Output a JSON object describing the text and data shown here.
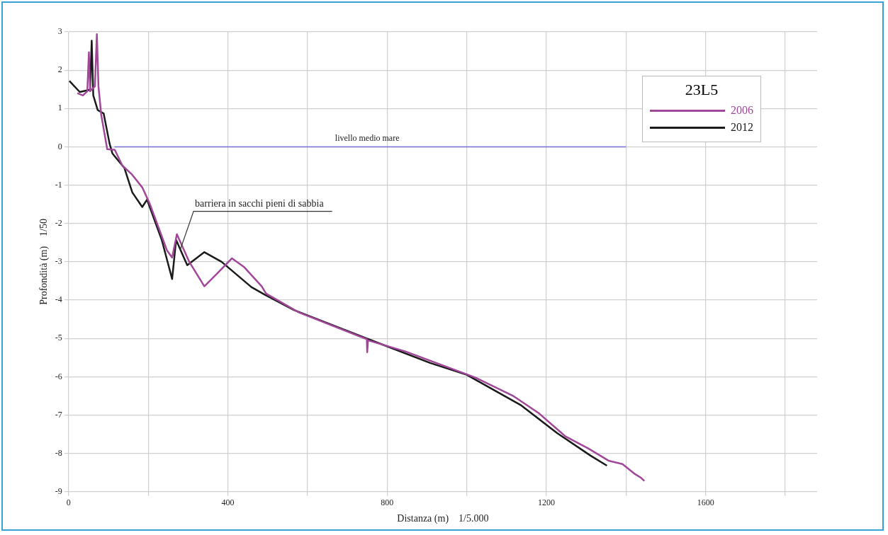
{
  "chart_data": {
    "type": "line",
    "xlabel": "Distanza (m)    1/5.000",
    "ylabel": "Profondità (m)    1/50",
    "legend_title": "23L5",
    "legend": "top right",
    "grid": true,
    "marker": "none",
    "line_style": "solid",
    "xlim": [
      0,
      1880
    ],
    "xticks": [
      0,
      {
        "value": 200,
        "label": null
      },
      400,
      {
        "value": 600,
        "label": null
      },
      800,
      {
        "value": 1000,
        "label": null
      },
      1200,
      {
        "value": 1400,
        "label": null
      },
      1600,
      {
        "value": 1800,
        "label": null
      }
    ],
    "ylim": [
      -9,
      3
    ],
    "yticks": [
      -9,
      -8,
      -7,
      -6,
      -5,
      -4,
      -3,
      -2,
      -1,
      0,
      1,
      2,
      3
    ],
    "annotations": [
      {
        "text": "livello medio mare",
        "x": 750,
        "y": 0
      },
      {
        "text": "barriera in sacchi pieni di sabbia",
        "x": 280,
        "y": -2.7
      }
    ],
    "series": [
      {
        "type": "line",
        "color": "#7b72d8",
        "x": [
          115,
          1400
        ],
        "values": [
          0,
          0
        ]
      },
      {
        "name": "2006",
        "color": "#a0479a",
        "x": [
          22,
          36,
          47,
          51,
          54,
          66,
          71,
          75,
          82,
          97,
          116,
          135,
          159,
          185,
          204,
          247,
          260,
          272,
          303,
          341,
          372,
          410,
          440,
          485,
          496,
          578,
          749,
          750,
          752,
          846,
          1021,
          1118,
          1182,
          1247,
          1305,
          1356,
          1391,
          1421,
          1438,
          1446
        ],
        "values": [
          1.4,
          1.34,
          1.45,
          2.47,
          1.45,
          1.58,
          2.94,
          1.58,
          0.83,
          -0.06,
          -0.08,
          -0.49,
          -0.72,
          -1.06,
          -1.49,
          -2.7,
          -2.89,
          -2.28,
          -3.0,
          -3.64,
          -3.32,
          -2.91,
          -3.13,
          -3.64,
          -3.83,
          -4.32,
          -5.02,
          -5.36,
          -5.05,
          -5.34,
          -6.02,
          -6.51,
          -6.96,
          -7.55,
          -7.87,
          -8.19,
          -8.28,
          -8.53,
          -8.64,
          -8.72
        ]
      },
      {
        "name": "2012",
        "color": "#1a1a1a",
        "x": [
          2,
          28,
          54,
          58,
          62,
          73,
          88,
          103,
          110,
          120,
          140,
          160,
          185,
          197,
          234,
          260,
          270,
          298,
          341,
          384,
          459,
          491,
          566,
          753,
          908,
          1000,
          1137,
          1227,
          1311,
          1352
        ],
        "values": [
          1.72,
          1.43,
          1.49,
          2.77,
          1.34,
          0.96,
          0.87,
          0.08,
          -0.17,
          -0.3,
          -0.55,
          -1.19,
          -1.57,
          -1.38,
          -2.43,
          -3.45,
          -2.43,
          -3.09,
          -2.75,
          -3.0,
          -3.66,
          -3.85,
          -4.26,
          -5.02,
          -5.64,
          -5.95,
          -6.75,
          -7.47,
          -8.06,
          -8.32
        ]
      }
    ]
  }
}
